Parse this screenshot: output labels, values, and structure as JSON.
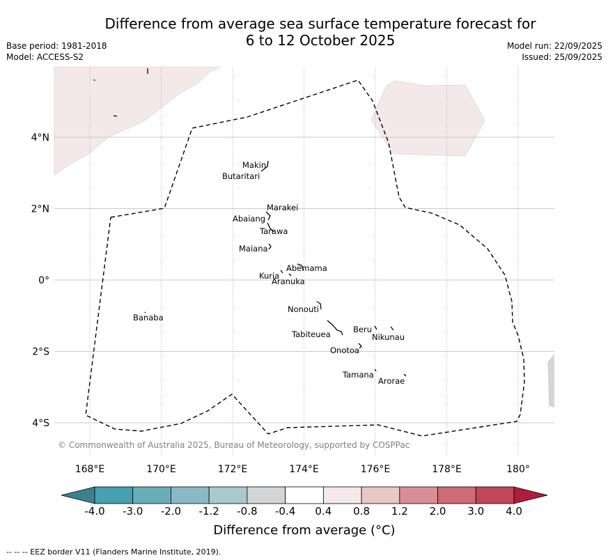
{
  "header": {
    "title_line1": "Difference from average sea surface temperature forecast for",
    "title_line2": "6 to 12 October 2025",
    "base_period": "Base period: 1981-2018",
    "model": "Model: ACCESS-S2",
    "model_run": "Model run: 22/09/2025",
    "issued": "Issued: 25/09/2025"
  },
  "map": {
    "lon_range": [
      167,
      181
    ],
    "lat_range": [
      -5,
      6
    ],
    "x_ticks": [
      {
        "value": 168,
        "label": "168°E"
      },
      {
        "value": 170,
        "label": "170°E"
      },
      {
        "value": 172,
        "label": "172°E"
      },
      {
        "value": 174,
        "label": "174°E"
      },
      {
        "value": 176,
        "label": "176°E"
      },
      {
        "value": 178,
        "label": "178°E"
      },
      {
        "value": 180,
        "label": "180°"
      }
    ],
    "y_ticks": [
      {
        "value": 4,
        "label": "4°N"
      },
      {
        "value": 2,
        "label": "2°N"
      },
      {
        "value": 0,
        "label": "0°"
      },
      {
        "value": -2,
        "label": "2°S"
      },
      {
        "value": -4,
        "label": "4°S"
      }
    ],
    "copyright": "© Commonwealth of Australia 2025, Bureau of Meteorology, supported by COSPPac",
    "islands": [
      {
        "name": "Makin",
        "lon": 173.0,
        "lat": 3.3
      },
      {
        "name": "Butaritari",
        "lon": 172.9,
        "lat": 3.1
      },
      {
        "name": "Marakei",
        "lon": 173.3,
        "lat": 2.0
      },
      {
        "name": "Abaiang",
        "lon": 172.9,
        "lat": 1.8
      },
      {
        "name": "Tarawa",
        "lon": 173.0,
        "lat": 1.4
      },
      {
        "name": "Maiana",
        "lon": 173.0,
        "lat": 1.0
      },
      {
        "name": "Abemama",
        "lon": 173.85,
        "lat": 0.45
      },
      {
        "name": "Kuria",
        "lon": 173.4,
        "lat": 0.23
      },
      {
        "name": "Aranuka",
        "lon": 173.6,
        "lat": 0.17
      },
      {
        "name": "Banaba",
        "lon": 169.5,
        "lat": -0.87
      },
      {
        "name": "Nonouti",
        "lon": 174.4,
        "lat": -0.65
      },
      {
        "name": "Tabiteuea",
        "lon": 174.8,
        "lat": -1.3
      },
      {
        "name": "Beru",
        "lon": 176.0,
        "lat": -1.35
      },
      {
        "name": "Nikunau",
        "lon": 176.45,
        "lat": -1.35
      },
      {
        "name": "Onotoa",
        "lon": 175.55,
        "lat": -1.8
      },
      {
        "name": "Tamana",
        "lon": 175.98,
        "lat": -2.5
      },
      {
        "name": "Arorae",
        "lon": 176.8,
        "lat": -2.65
      }
    ],
    "anomaly_regions": [
      {
        "category": "0.4 to 0.8",
        "description": "north-west anomaly region"
      },
      {
        "category": "0.4 to 0.8",
        "description": "north-east anomaly region"
      },
      {
        "category": "-0.8 to -0.4",
        "description": "south-east edge region"
      }
    ]
  },
  "colorbar": {
    "boundaries": [
      "-4.0",
      "-3.0",
      "-2.0",
      "-1.2",
      "-0.8",
      "-0.4",
      "0.4",
      "0.8",
      "1.2",
      "2.0",
      "3.0",
      "4.0"
    ],
    "colors": [
      "#45a0b0",
      "#6aadba",
      "#8ab9c3",
      "#a9c9cc",
      "#d1d6d8",
      "#ffffff",
      "#f4e9e9",
      "#e8c8c6",
      "#d98e96",
      "#cd6b77",
      "#c0465a"
    ],
    "under_color": "#3d8190",
    "over_color": "#b01c3b",
    "label": "Difference from average (°C)"
  },
  "footnote": "--  --  -- EEZ border V11 (Flanders Marine Institute, 2019)."
}
